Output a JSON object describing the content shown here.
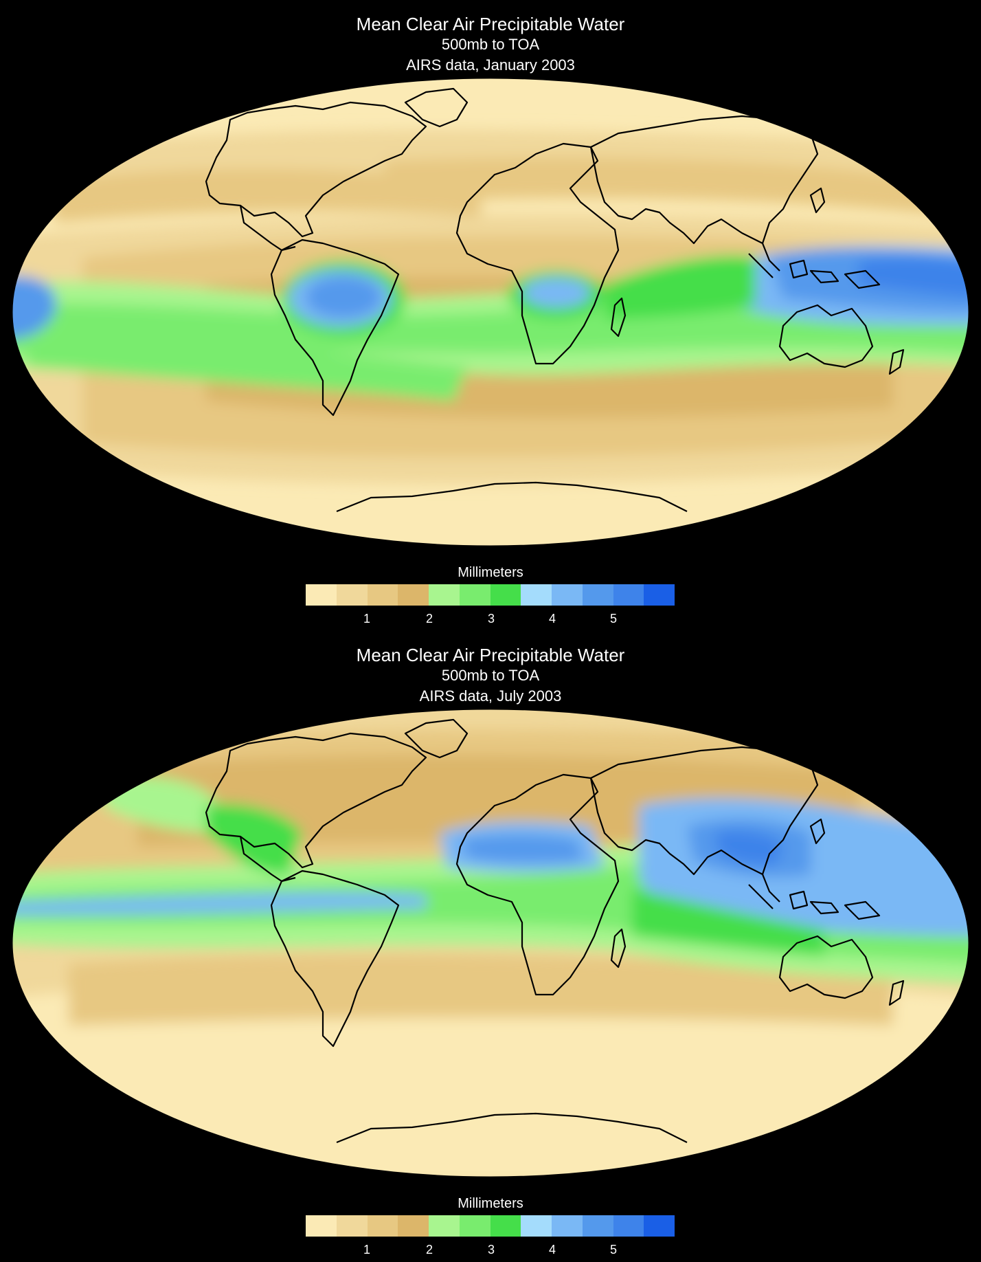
{
  "panels": [
    {
      "title": "Mean Clear Air Precipitable Water",
      "subtitle": "500mb to TOA",
      "source": "AIRS data, January 2003",
      "legend_title": "Millimeters",
      "legend_ticks": [
        "1",
        "2",
        "3",
        "4",
        "5"
      ]
    },
    {
      "title": "Mean Clear Air Precipitable Water",
      "subtitle": "500mb to TOA",
      "source": "AIRS data, July 2003",
      "legend_title": "Millimeters",
      "legend_ticks": [
        "1",
        "2",
        "3",
        "4",
        "5"
      ]
    }
  ],
  "palette": [
    "#fbeab5",
    "#f0d89b",
    "#e7c882",
    "#dcb66a",
    "#a8f58f",
    "#79ec6e",
    "#45de4a",
    "#a4dcfc",
    "#7ab8f5",
    "#5499ec",
    "#3e83ea",
    "#1a5fe6"
  ],
  "colors": {
    "background": "#000000",
    "coastline": "#000000"
  }
}
